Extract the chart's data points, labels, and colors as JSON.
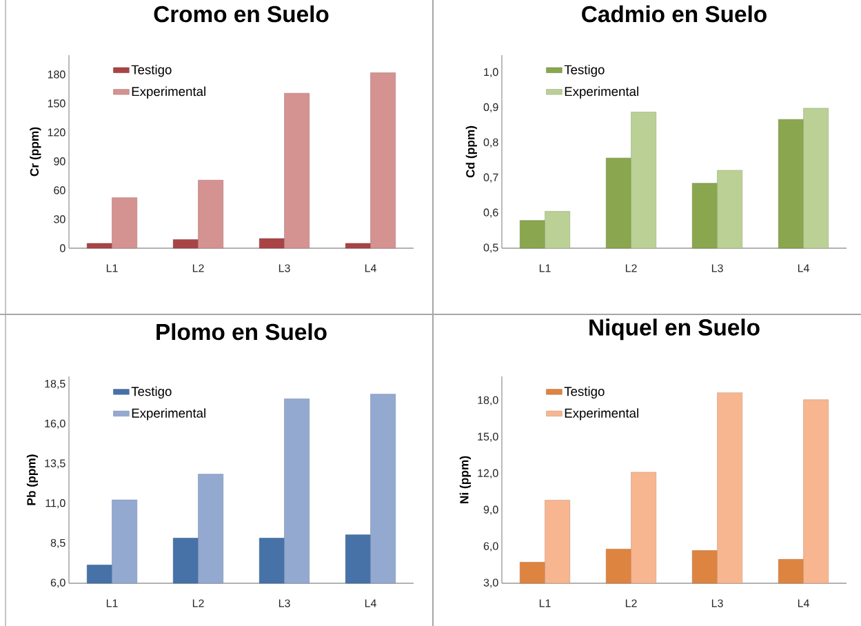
{
  "chart_data": [
    {
      "type": "bar",
      "title": "Cromo en Suelo",
      "ylabel": "Cr (ppm)",
      "categories": [
        "L1",
        "L2",
        "L3",
        "L4"
      ],
      "series": [
        {
          "name": "Testigo",
          "color": "#a84446",
          "values": [
            5,
            9,
            10,
            5
          ]
        },
        {
          "name": "Experimental",
          "color": "#d49291",
          "values": [
            52.3,
            70.5,
            160.6,
            181.8
          ]
        }
      ],
      "ylim": [
        0,
        200
      ],
      "yticks": [
        0,
        30,
        60,
        90,
        120,
        150,
        180
      ],
      "legend": "top left"
    },
    {
      "type": "bar",
      "title": "Cadmio en Suelo",
      "ylabel": "Cd (ppm)",
      "categories": [
        "L1",
        "L2",
        "L3",
        "L4"
      ],
      "series": [
        {
          "name": "Testigo",
          "color": "#8aa64e",
          "values": [
            0.579,
            0.757,
            0.685,
            0.867
          ]
        },
        {
          "name": "Experimental",
          "color": "#bad095",
          "values": [
            0.605,
            0.888,
            0.722,
            0.899
          ]
        }
      ],
      "ylim": [
        0.5,
        1.05
      ],
      "yticks": [
        {
          "value": 0.5,
          "label": "0,5"
        },
        {
          "value": 0.6,
          "label": "0,6"
        },
        {
          "value": 0.7,
          "label": "0,7"
        },
        {
          "value": 0.8,
          "label": "0,8"
        },
        {
          "value": 0.9,
          "label": "0,9"
        },
        {
          "value": 1.0,
          "label": "1,0"
        }
      ],
      "legend": "top left"
    },
    {
      "type": "bar",
      "title": "Plomo en Suelo",
      "ylabel": "Pb (ppm)",
      "categories": [
        "L1",
        "L2",
        "L3",
        "L4"
      ],
      "series": [
        {
          "name": "Testigo",
          "color": "#4672a8",
          "values": [
            7.15,
            8.84,
            8.84,
            9.05
          ]
        },
        {
          "name": "Experimental",
          "color": "#94a9d0",
          "values": [
            11.24,
            12.86,
            17.59,
            17.89
          ]
        }
      ],
      "ylim": [
        6,
        19
      ],
      "yticks": [
        {
          "value": 6,
          "label": "6,0"
        },
        {
          "value": 8.5,
          "label": "8,5"
        },
        {
          "value": 11,
          "label": "11,0"
        },
        {
          "value": 13.5,
          "label": "13,5"
        },
        {
          "value": 16,
          "label": "16,0"
        },
        {
          "value": 18.5,
          "label": "18,5"
        }
      ],
      "legend": "top left"
    },
    {
      "type": "bar",
      "title": "Niquel en Suelo",
      "ylabel": "Ni (ppm)",
      "categories": [
        "L1",
        "L2",
        "L3",
        "L4"
      ],
      "series": [
        {
          "name": "Testigo",
          "color": "#de8441",
          "values": [
            4.73,
            5.81,
            5.69,
            4.97
          ]
        },
        {
          "name": "Experimental",
          "color": "#f7b690",
          "values": [
            9.83,
            12.13,
            18.66,
            18.09
          ]
        }
      ],
      "ylim": [
        3,
        20
      ],
      "yticks": [
        {
          "value": 3,
          "label": "3,0"
        },
        {
          "value": 6,
          "label": "6,0"
        },
        {
          "value": 9,
          "label": "9,0"
        },
        {
          "value": 12,
          "label": "12,0"
        },
        {
          "value": 15,
          "label": "15,0"
        },
        {
          "value": 18,
          "label": "18,0"
        }
      ],
      "legend": "top left"
    }
  ]
}
